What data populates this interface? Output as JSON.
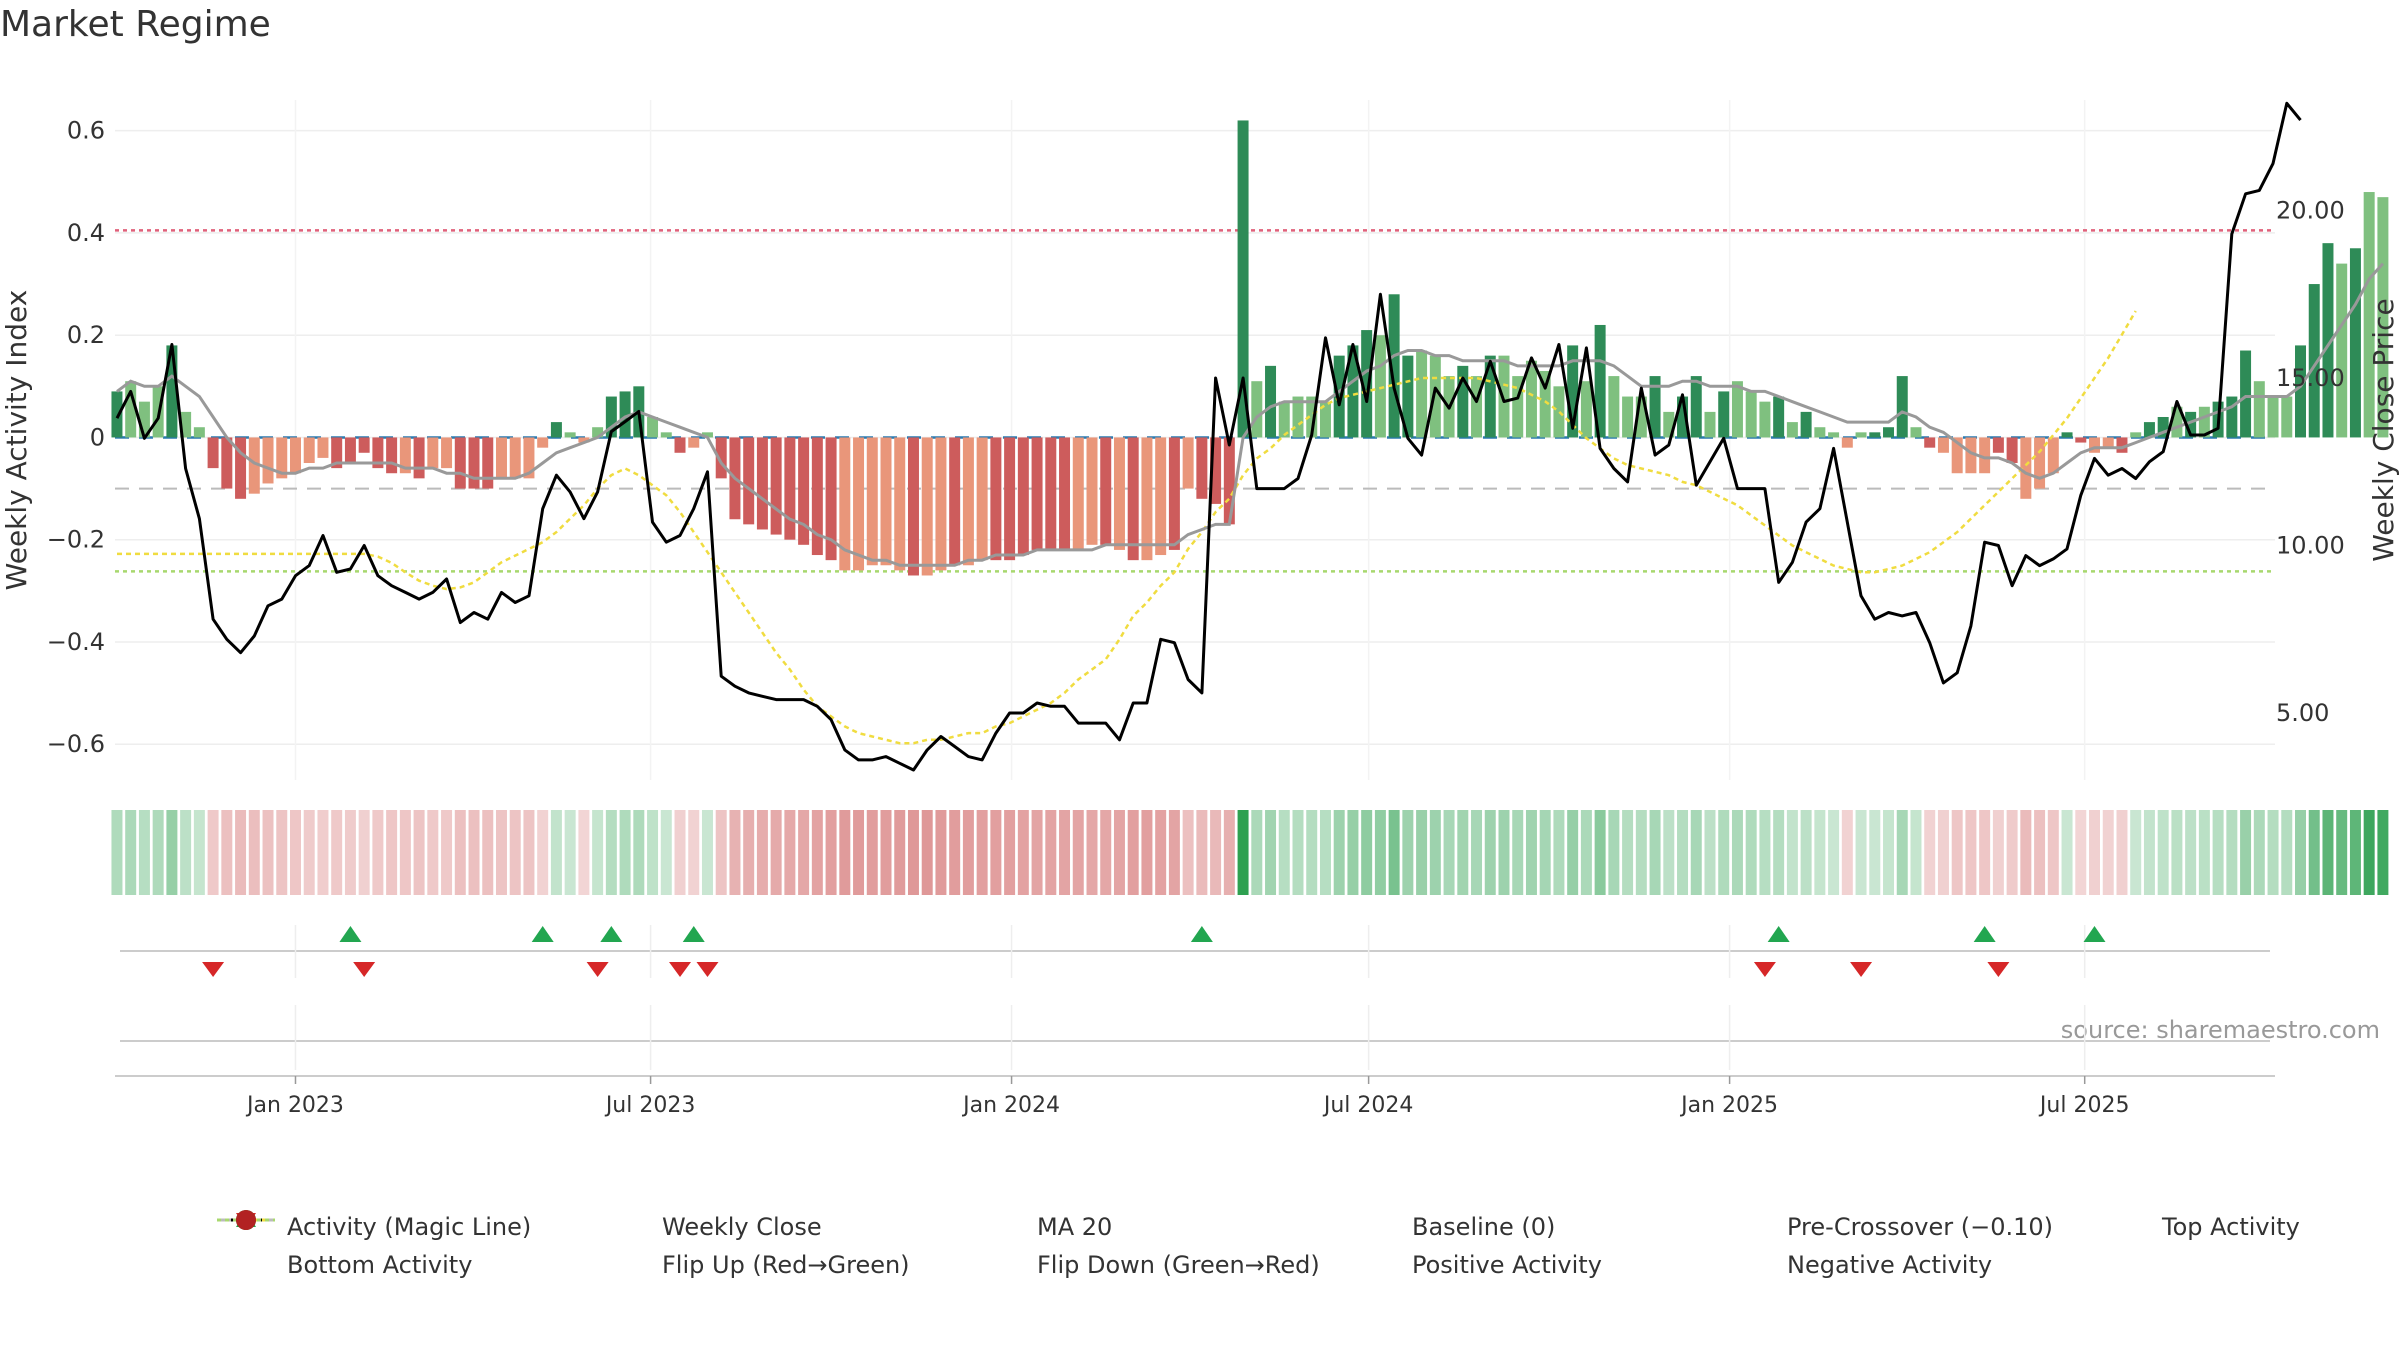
{
  "title": "Market Regime",
  "source": "source: sharemaestro.com",
  "colors": {
    "pos_strong": "#2e8b57",
    "pos_light": "#7fc07f",
    "neg_strong": "#cd5c5c",
    "neg_light": "#e9967a",
    "close": "#000000",
    "magic": "#999999",
    "ma": "#f0dc40",
    "top": "#e0607a",
    "bottom": "#a8d86e",
    "pre": "#bbbbbb",
    "base": "#2a7ab0",
    "up_marker": "#22a650",
    "down_marker": "#d62728"
  },
  "chart_data": {
    "type": "bar",
    "title": "Market Regime",
    "ylabel": "Weekly Activity Index",
    "y2label": "Weekly Close Price",
    "ylim": [
      -0.67,
      0.66
    ],
    "y2lim": [
      3.0,
      23.3
    ],
    "yticks": [
      "0.6",
      "0.4",
      "0.2",
      "0",
      "−0.2",
      "−0.4",
      "−0.6"
    ],
    "y2ticks": [
      "20.00",
      "15.00",
      "10.00",
      "5.00"
    ],
    "xticks": [
      "Jan 2023",
      "Jul 2023",
      "Jan 2024",
      "Jul 2024",
      "Jan 2025",
      "Jul 2025"
    ],
    "x_range": [
      "2022-10-01",
      "2025-10-06"
    ],
    "levels": {
      "top": 0.405,
      "bottom": -0.262,
      "pre_crossover": -0.1,
      "baseline": 0
    },
    "activity_first_week": "2022-10-02",
    "activity": [
      0.09,
      0.11,
      0.07,
      0.1,
      0.18,
      0.05,
      0.02,
      -0.06,
      -0.1,
      -0.12,
      -0.11,
      -0.09,
      -0.08,
      -0.07,
      -0.05,
      -0.04,
      -0.06,
      -0.05,
      -0.03,
      -0.06,
      -0.07,
      -0.07,
      -0.08,
      -0.06,
      -0.06,
      -0.1,
      -0.1,
      -0.1,
      -0.08,
      -0.08,
      -0.08,
      -0.02,
      0.03,
      0.01,
      -0.01,
      0.02,
      0.08,
      0.09,
      0.1,
      0.04,
      0.01,
      -0.03,
      -0.02,
      0.01,
      -0.08,
      -0.16,
      -0.17,
      -0.18,
      -0.19,
      -0.2,
      -0.21,
      -0.23,
      -0.24,
      -0.26,
      -0.26,
      -0.25,
      -0.25,
      -0.26,
      -0.27,
      -0.27,
      -0.26,
      -0.25,
      -0.25,
      -0.24,
      -0.24,
      -0.24,
      -0.23,
      -0.22,
      -0.22,
      -0.22,
      -0.22,
      -0.21,
      -0.21,
      -0.22,
      -0.24,
      -0.24,
      -0.23,
      -0.22,
      -0.1,
      -0.12,
      -0.13,
      -0.17,
      0.62,
      0.11,
      0.14,
      0.07,
      0.08,
      0.08,
      0.07,
      0.16,
      0.18,
      0.21,
      0.2,
      0.28,
      0.16,
      0.17,
      0.16,
      0.12,
      0.14,
      0.12,
      0.16,
      0.16,
      0.12,
      0.15,
      0.13,
      0.1,
      0.18,
      0.11,
      0.22,
      0.12,
      0.08,
      0.08,
      0.12,
      0.05,
      0.08,
      0.12,
      0.05,
      0.09,
      0.11,
      0.09,
      0.07,
      0.08,
      0.03,
      0.05,
      0.02,
      0.01,
      -0.02,
      0.01,
      0.01,
      0.02,
      0.12,
      0.02,
      -0.02,
      -0.03,
      -0.07,
      -0.07,
      -0.07,
      -0.03,
      -0.05,
      -0.12,
      -0.1,
      -0.07,
      0.01,
      -0.01,
      -0.03,
      -0.02,
      -0.03,
      0.01,
      0.03,
      0.04,
      0.06,
      0.05,
      0.06,
      0.07,
      0.08,
      0.17,
      0.11,
      0.08,
      0.08,
      0.18,
      0.3,
      0.38,
      0.34,
      0.37,
      0.48,
      0.47
    ],
    "activity_colors": [
      "#2e8b57",
      "#7fc07f",
      "#7fc07f",
      "#7fc07f",
      "#2e8b57",
      "#7fc07f",
      "#7fc07f",
      "#cd5c5c",
      "#cd5c5c",
      "#cd5c5c",
      "#e9967a",
      "#e9967a",
      "#e9967a",
      "#e9967a",
      "#e9967a",
      "#e9967a",
      "#cd5c5c",
      "#cd5c5c",
      "#cd5c5c",
      "#cd5c5c",
      "#cd5c5c",
      "#e9967a",
      "#cd5c5c",
      "#e9967a",
      "#e9967a",
      "#cd5c5c",
      "#cd5c5c",
      "#cd5c5c",
      "#e9967a",
      "#e9967a",
      "#e9967a",
      "#e9967a",
      "#2e8b57",
      "#7fc07f",
      "#e9967a",
      "#7fc07f",
      "#2e8b57",
      "#2e8b57",
      "#2e8b57",
      "#7fc07f",
      "#7fc07f",
      "#cd5c5c",
      "#e9967a",
      "#7fc07f",
      "#cd5c5c",
      "#cd5c5c",
      "#cd5c5c",
      "#cd5c5c",
      "#cd5c5c",
      "#cd5c5c",
      "#cd5c5c",
      "#cd5c5c",
      "#cd5c5c",
      "#e9967a",
      "#e9967a",
      "#e9967a",
      "#e9967a",
      "#e9967a",
      "#cd5c5c",
      "#e9967a",
      "#e9967a",
      "#cd5c5c",
      "#e9967a",
      "#e9967a",
      "#cd5c5c",
      "#cd5c5c",
      "#cd5c5c",
      "#cd5c5c",
      "#cd5c5c",
      "#cd5c5c",
      "#e9967a",
      "#e9967a",
      "#cd5c5c",
      "#e9967a",
      "#cd5c5c",
      "#e9967a",
      "#e9967a",
      "#cd5c5c",
      "#e9967a",
      "#cd5c5c",
      "#cd5c5c",
      "#cd5c5c",
      "#2e8b57",
      "#7fc07f",
      "#2e8b57",
      "#7fc07f",
      "#7fc07f",
      "#7fc07f",
      "#7fc07f",
      "#2e8b57",
      "#2e8b57",
      "#2e8b57",
      "#7fc07f",
      "#2e8b57",
      "#2e8b57",
      "#7fc07f",
      "#7fc07f",
      "#7fc07f",
      "#2e8b57",
      "#7fc07f",
      "#2e8b57",
      "#7fc07f",
      "#7fc07f",
      "#7fc07f",
      "#7fc07f",
      "#7fc07f",
      "#2e8b57",
      "#7fc07f",
      "#2e8b57",
      "#7fc07f",
      "#7fc07f",
      "#7fc07f",
      "#2e8b57",
      "#7fc07f",
      "#2e8b57",
      "#2e8b57",
      "#7fc07f",
      "#2e8b57",
      "#7fc07f",
      "#7fc07f",
      "#7fc07f",
      "#2e8b57",
      "#7fc07f",
      "#2e8b57",
      "#7fc07f",
      "#7fc07f",
      "#e9967a",
      "#7fc07f",
      "#2e8b57",
      "#2e8b57",
      "#2e8b57",
      "#7fc07f",
      "#cd5c5c",
      "#e9967a",
      "#e9967a",
      "#e9967a",
      "#e9967a",
      "#cd5c5c",
      "#cd5c5c",
      "#e9967a",
      "#e9967a",
      "#e9967a",
      "#2e8b57",
      "#cd5c5c",
      "#e9967a",
      "#e9967a",
      "#cd5c5c",
      "#7fc07f",
      "#2e8b57",
      "#2e8b57",
      "#7fc07f",
      "#2e8b57",
      "#7fc07f",
      "#2e8b57",
      "#2e8b57",
      "#2e8b57",
      "#7fc07f",
      "#7fc07f",
      "#7fc07f",
      "#2e8b57",
      "#2e8b57",
      "#2e8b57",
      "#7fc07f",
      "#2e8b57",
      "#7fc07f",
      "#7fc07f"
    ],
    "magic_line": [
      0.09,
      0.11,
      0.1,
      0.1,
      0.12,
      0.1,
      0.08,
      0.04,
      0.0,
      -0.03,
      -0.05,
      -0.06,
      -0.07,
      -0.07,
      -0.06,
      -0.06,
      -0.05,
      -0.05,
      -0.05,
      -0.05,
      -0.05,
      -0.06,
      -0.06,
      -0.06,
      -0.07,
      -0.07,
      -0.08,
      -0.08,
      -0.08,
      -0.08,
      -0.07,
      -0.05,
      -0.03,
      -0.02,
      -0.01,
      0.0,
      0.02,
      0.04,
      0.05,
      0.04,
      0.03,
      0.02,
      0.01,
      0.0,
      -0.05,
      -0.08,
      -0.1,
      -0.12,
      -0.14,
      -0.16,
      -0.17,
      -0.19,
      -0.2,
      -0.22,
      -0.23,
      -0.24,
      -0.24,
      -0.25,
      -0.25,
      -0.25,
      -0.25,
      -0.25,
      -0.24,
      -0.24,
      -0.23,
      -0.23,
      -0.23,
      -0.22,
      -0.22,
      -0.22,
      -0.22,
      -0.22,
      -0.21,
      -0.21,
      -0.21,
      -0.21,
      -0.21,
      -0.21,
      -0.19,
      -0.18,
      -0.17,
      -0.17,
      0.0,
      0.04,
      0.06,
      0.07,
      0.07,
      0.07,
      0.07,
      0.09,
      0.11,
      0.13,
      0.14,
      0.16,
      0.17,
      0.17,
      0.16,
      0.16,
      0.15,
      0.15,
      0.15,
      0.15,
      0.14,
      0.14,
      0.14,
      0.14,
      0.15,
      0.15,
      0.15,
      0.14,
      0.12,
      0.1,
      0.1,
      0.1,
      0.11,
      0.11,
      0.1,
      0.1,
      0.1,
      0.09,
      0.09,
      0.08,
      0.07,
      0.06,
      0.05,
      0.04,
      0.03,
      0.03,
      0.03,
      0.03,
      0.05,
      0.04,
      0.02,
      0.01,
      -0.01,
      -0.03,
      -0.04,
      -0.04,
      -0.05,
      -0.07,
      -0.08,
      -0.07,
      -0.05,
      -0.03,
      -0.02,
      -0.02,
      -0.02,
      -0.01,
      0.0,
      0.01,
      0.02,
      0.03,
      0.04,
      0.05,
      0.06,
      0.08,
      0.08,
      0.08,
      0.08,
      0.1,
      0.14,
      0.18,
      0.22,
      0.26,
      0.31,
      0.34
    ],
    "close_first_week": "2022-10-02",
    "close": [
      13.8,
      14.6,
      13.2,
      13.8,
      16.0,
      12.3,
      10.8,
      7.8,
      7.2,
      6.8,
      7.3,
      8.2,
      8.4,
      9.1,
      9.4,
      10.3,
      9.2,
      9.3,
      10.0,
      9.1,
      8.8,
      8.6,
      8.4,
      8.6,
      9.0,
      7.7,
      8.0,
      7.8,
      8.6,
      8.3,
      8.5,
      11.1,
      12.1,
      11.6,
      10.8,
      11.6,
      13.4,
      13.7,
      14.0,
      10.7,
      10.1,
      10.3,
      11.1,
      12.2,
      6.1,
      5.8,
      5.6,
      5.5,
      5.4,
      5.4,
      5.4,
      5.2,
      4.8,
      3.9,
      3.6,
      3.6,
      3.7,
      3.5,
      3.3,
      3.9,
      4.3,
      4.0,
      3.7,
      3.6,
      4.4,
      5.0,
      5.0,
      5.3,
      5.2,
      5.2,
      4.7,
      4.7,
      4.7,
      4.2,
      5.3,
      5.3,
      7.2,
      7.1,
      6.0,
      5.6,
      15.0,
      13.0,
      15.0,
      11.7,
      11.7,
      11.7,
      12.0,
      13.3,
      16.2,
      14.2,
      16.0,
      14.3,
      17.5,
      14.7,
      13.2,
      12.7,
      14.7,
      14.1,
      15.0,
      14.3,
      15.5,
      14.3,
      14.4,
      15.6,
      14.7,
      16.0,
      13.5,
      15.9,
      12.9,
      12.3,
      11.9,
      14.7,
      12.7,
      13.0,
      14.5,
      11.8,
      12.5,
      13.2,
      11.7,
      11.7,
      11.7,
      8.9,
      9.5,
      10.7,
      11.1,
      12.9,
      10.7,
      8.5,
      7.8,
      8.0,
      7.9,
      8.0,
      7.1,
      5.9,
      6.2,
      7.6,
      10.1,
      10.0,
      8.8,
      9.7,
      9.4,
      9.6,
      9.9,
      11.5,
      12.6,
      12.1,
      12.3,
      12.0,
      12.5,
      12.8,
      14.3,
      13.3,
      13.3,
      13.5,
      19.3,
      20.5,
      20.6,
      21.4,
      23.2,
      22.7
    ],
    "ma20": [
      9.75,
      9.75,
      9.75,
      9.75,
      9.75,
      9.75,
      9.75,
      9.75,
      9.75,
      9.75,
      9.75,
      9.75,
      9.75,
      9.75,
      9.75,
      9.75,
      9.75,
      9.75,
      9.75,
      9.67,
      9.48,
      9.2,
      8.95,
      8.8,
      8.7,
      8.75,
      8.9,
      9.2,
      9.5,
      9.7,
      9.9,
      10.1,
      10.4,
      10.8,
      11.2,
      11.7,
      12.1,
      12.3,
      12.1,
      11.8,
      11.5,
      11.0,
      10.4,
      9.8,
      9.2,
      8.6,
      8.0,
      7.4,
      6.8,
      6.3,
      5.7,
      5.2,
      4.9,
      4.6,
      4.4,
      4.3,
      4.2,
      4.1,
      4.1,
      4.2,
      4.2,
      4.3,
      4.4,
      4.4,
      4.6,
      4.7,
      4.9,
      5.1,
      5.3,
      5.6,
      6.0,
      6.3,
      6.6,
      7.2,
      7.9,
      8.3,
      8.8,
      9.2,
      9.9,
      10.4,
      11.0,
      11.4,
      12.1,
      12.6,
      12.9,
      13.3,
      13.6,
      13.9,
      14.2,
      14.4,
      14.5,
      14.6,
      14.7,
      14.8,
      14.9,
      15.0,
      15.0,
      15.0,
      15.0,
      15.0,
      14.9,
      14.8,
      14.7,
      14.5,
      14.3,
      14.0,
      13.6,
      13.2,
      12.9,
      12.6,
      12.4,
      12.3,
      12.2,
      12.1,
      11.9,
      11.8,
      11.6,
      11.4,
      11.2,
      10.9,
      10.6,
      10.3,
      10.0,
      9.8,
      9.6,
      9.4,
      9.3,
      9.2,
      9.2,
      9.3,
      9.4,
      9.6,
      9.8,
      10.1,
      10.4,
      10.8,
      11.2,
      11.6,
      12.0,
      12.4,
      12.8,
      13.3,
      13.8,
      14.4,
      15.0,
      15.6,
      16.3,
      17.0
    ],
    "flip_up": [
      "2023-01-29",
      "2023-05-07",
      "2023-06-11",
      "2023-07-23",
      "2024-04-07",
      "2025-01-26",
      "2025-05-11",
      "2025-07-06"
    ],
    "flip_down": [
      "2022-11-20",
      "2023-02-05",
      "2023-06-04",
      "2023-07-16",
      "2023-07-30",
      "2025-01-19",
      "2025-03-09",
      "2025-05-18"
    ],
    "legend": [
      "Activity (Magic Line)",
      "Weekly Close",
      "MA 20",
      "Baseline (0)",
      "Pre-Crossover (−0.10)",
      "Top Activity",
      "Bottom Activity",
      "Flip Up (Red→Green)",
      "Flip Down (Green→Red)",
      "Positive Activity",
      "Negative Activity"
    ],
    "legend_placement": "bottom",
    "grid": true
  }
}
